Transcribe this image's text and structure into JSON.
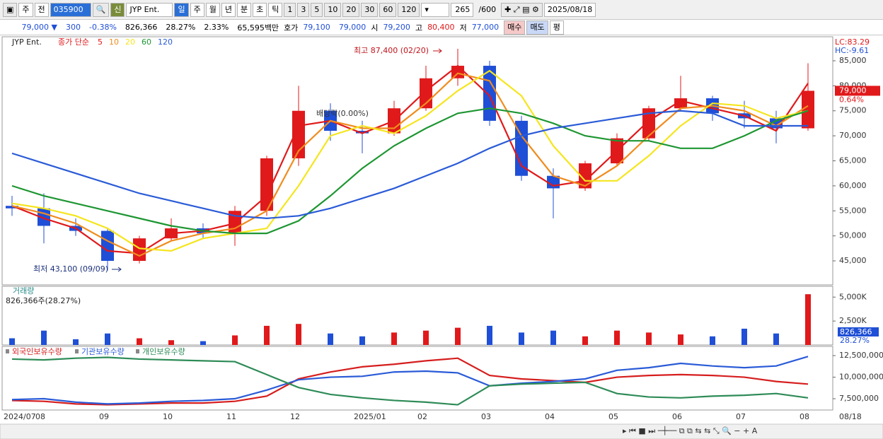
{
  "toolbar": {
    "period_type": "주",
    "prev": "전",
    "code": "035900",
    "new": "신",
    "name": "JYP Ent.",
    "intervals": [
      "일",
      "주",
      "월",
      "년",
      "분",
      "초",
      "틱",
      "1",
      "3",
      "5",
      "10",
      "20",
      "30",
      "60",
      "120"
    ],
    "count": "265",
    "max": "/600",
    "date": "2025/08/18"
  },
  "quote": {
    "price": "79,000 ▼",
    "change": "300",
    "change_pct": "-0.38%",
    "volume": "826,366",
    "turnover": "28.27%",
    "pct2": "2.33%",
    "amount": "65,595백만",
    "bid_label": "호가",
    "ask": "79,100",
    "bid": "79,000",
    "open_label": "시",
    "open": "79,200",
    "high_label": "고",
    "high": "80,400",
    "low_label": "저",
    "low": "77,000",
    "buy": "매수",
    "sell": "매도",
    "avg": "평"
  },
  "chart_data": [
    {
      "type": "candlestick",
      "name": "JYP Ent.",
      "legend_title": "종가 단순",
      "x": [
        "2024/07",
        "08",
        null,
        "09",
        null,
        "10",
        null,
        "11",
        null,
        "12",
        null,
        "2025/01",
        null,
        "02",
        null,
        "03",
        null,
        "04",
        null,
        "05",
        null,
        "06",
        null,
        "07",
        null,
        "08"
      ],
      "x_end_label": "08/18",
      "open": [
        56000,
        55500,
        52000,
        51000,
        45000,
        49500,
        51500,
        50500,
        55000,
        65500,
        75000,
        71000,
        70500,
        75500,
        81500,
        84000,
        73000,
        62000,
        59500,
        64500,
        69500,
        75500,
        77500,
        74500,
        73500,
        71500
      ],
      "high": [
        58000,
        58500,
        53500,
        51500,
        50000,
        53500,
        52500,
        56000,
        66000,
        80000,
        76500,
        73000,
        77000,
        84000,
        87400,
        85000,
        74000,
        63500,
        65000,
        70500,
        76000,
        82000,
        78000,
        77000,
        75000,
        84500
      ],
      "low": [
        54000,
        48500,
        50000,
        43100,
        44500,
        49000,
        49500,
        48000,
        54000,
        64000,
        69000,
        66500,
        70000,
        75000,
        80000,
        72000,
        61000,
        53500,
        59000,
        64000,
        69000,
        75000,
        73000,
        71500,
        68500,
        71000
      ],
      "close": [
        55500,
        52000,
        51000,
        45000,
        49500,
        51500,
        50500,
        55000,
        65500,
        75000,
        71000,
        70500,
        75500,
        81500,
        84000,
        73000,
        62000,
        59500,
        64500,
        69500,
        75500,
        77500,
        74500,
        73500,
        71500,
        79000
      ],
      "up_color": "#e0191b",
      "down_color": "#1f4fd6",
      "series": [
        {
          "name": "5",
          "color": "#e0191b",
          "values": [
            56000,
            53500,
            51500,
            47000,
            46500,
            50500,
            51000,
            52500,
            58000,
            72000,
            73000,
            70500,
            73000,
            79000,
            84000,
            78000,
            64000,
            60000,
            61000,
            67000,
            73000,
            77000,
            75500,
            74000,
            71000,
            80500
          ]
        },
        {
          "name": "10",
          "color": "#f08c1e",
          "values": [
            56000,
            54500,
            52500,
            49000,
            46000,
            49000,
            50500,
            51500,
            55000,
            67000,
            73000,
            71500,
            71500,
            76500,
            82500,
            81000,
            70000,
            62000,
            60000,
            64000,
            70000,
            75500,
            76000,
            75000,
            72000,
            76000
          ]
        },
        {
          "name": "20",
          "color": "#f5e51e",
          "values": [
            56500,
            55500,
            54000,
            51500,
            47500,
            47000,
            49500,
            50500,
            51500,
            60000,
            70000,
            72000,
            70500,
            74000,
            79000,
            83000,
            78000,
            68000,
            61000,
            61000,
            66000,
            72000,
            76500,
            76000,
            73500,
            75000
          ]
        },
        {
          "name": "60",
          "color": "#1e9632",
          "values": [
            60000,
            58000,
            56500,
            55000,
            53500,
            52000,
            51000,
            50500,
            50500,
            53000,
            58000,
            63500,
            68000,
            71500,
            74500,
            75500,
            74500,
            72500,
            70000,
            69000,
            69000,
            67500,
            67500,
            70000,
            73000,
            75000
          ]
        },
        {
          "name": "120",
          "color": "#2a5bd7",
          "values": [
            66500,
            64500,
            62500,
            60500,
            58500,
            57000,
            55500,
            54000,
            53500,
            54000,
            55500,
            57500,
            59500,
            62000,
            64500,
            67500,
            70000,
            71500,
            72500,
            73500,
            74500,
            75000,
            74500,
            72000,
            72000,
            72000
          ]
        }
      ],
      "ylim": [
        40200,
        89800
      ],
      "yticks": [
        {
          "value": 45000,
          "label": "45,000"
        },
        {
          "value": 50000,
          "label": "50,000"
        },
        {
          "value": 55000,
          "label": "55,000"
        },
        {
          "value": 60000,
          "label": "60,000"
        },
        {
          "value": 65000,
          "label": "65,000"
        },
        {
          "value": 70000,
          "label": "70,000"
        },
        {
          "value": 75000,
          "label": "75,000"
        },
        {
          "value": 80000,
          "label": "80,000"
        },
        {
          "value": 85000,
          "label": "85,000"
        }
      ],
      "annotations": [
        "최고 87,400 (02/20)",
        "최저 43,100 (09/09)",
        "배당락(0.00%)"
      ],
      "lc": "LC:83.29",
      "hc": "HC:-9.61",
      "current_label": "79,000",
      "current_change": "0.64%"
    },
    {
      "type": "bar",
      "title": "거래량",
      "subtitle": "826,366주(28.27%)",
      "values": [
        700000,
        1500000,
        600000,
        1200000,
        700000,
        500000,
        400000,
        1000000,
        2000000,
        2200000,
        1200000,
        900000,
        1300000,
        1500000,
        1800000,
        2000000,
        1300000,
        1500000,
        900000,
        1500000,
        1300000,
        1100000,
        900000,
        1700000,
        1200000,
        5300000
      ],
      "ylim": [
        0,
        6200000
      ],
      "yticks": [
        {
          "value": 2500000,
          "label": "2,500K"
        },
        {
          "value": 5000000,
          "label": "5,000K"
        }
      ],
      "current_label": "826,366",
      "current_change": "28.27%"
    },
    {
      "type": "line",
      "series": [
        {
          "name": "외국인보유수량",
          "color": "#d61e1e",
          "values": [
            7300000,
            7200000,
            6900000,
            6800000,
            6900000,
            7000000,
            7000000,
            7200000,
            7800000,
            9800000,
            10600000,
            11200000,
            11500000,
            11900000,
            12200000,
            10200000,
            9800000,
            9600000,
            9400000,
            10000000,
            10200000,
            10300000,
            10200000,
            10000000,
            9500000,
            9200000
          ]
        },
        {
          "name": "기관보유수량",
          "color": "#2a5bd7",
          "values": [
            7400000,
            7500000,
            7100000,
            6900000,
            7000000,
            7200000,
            7300000,
            7500000,
            8500000,
            9700000,
            10000000,
            10100000,
            10600000,
            10700000,
            10500000,
            9000000,
            9300000,
            9500000,
            9800000,
            10800000,
            11100000,
            11600000,
            11300000,
            11100000,
            11300000,
            12400000
          ]
        },
        {
          "name": "개인보유수량",
          "color": "#2e8b57",
          "values": [
            12100000,
            12000000,
            12200000,
            12300000,
            12100000,
            12000000,
            11900000,
            11800000,
            10300000,
            8800000,
            8000000,
            7600000,
            7300000,
            7100000,
            6800000,
            9000000,
            9200000,
            9300000,
            9400000,
            8100000,
            7700000,
            7600000,
            7800000,
            7900000,
            8100000,
            7600000
          ]
        }
      ],
      "ylim": [
        6190000,
        13570000
      ],
      "yticks": [
        {
          "value": 7500000,
          "label": "7,500,000"
        },
        {
          "value": 10000000,
          "label": "10,000,000"
        },
        {
          "value": 12500000,
          "label": "12,500,000"
        }
      ]
    }
  ]
}
